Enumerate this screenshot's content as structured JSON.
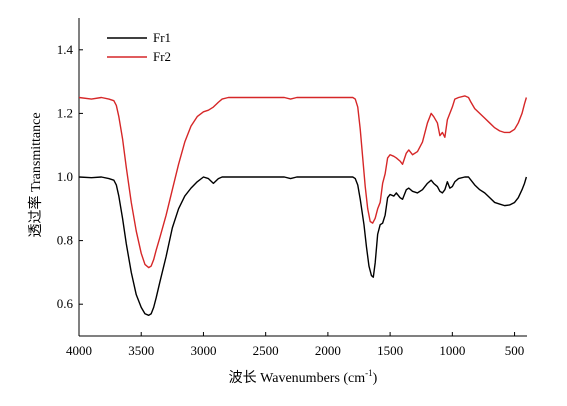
{
  "chart_data": {
    "type": "line",
    "title": "",
    "xlabel": "波长 Wavenumbers (cm",
    "xlabel_unit_sup": "-1",
    "xlabel_close": ")",
    "ylabel": "透过率 Transmittance",
    "xlim": [
      4000,
      400
    ],
    "ylim": [
      0.5,
      1.5
    ],
    "x_reversed": true,
    "x_ticks": [
      4000,
      3500,
      3000,
      2500,
      2000,
      1500,
      1000,
      500
    ],
    "x_tick_labels": [
      "4000",
      "3500",
      "3000",
      "2500",
      "2000",
      "1500",
      "1000",
      "500"
    ],
    "y_ticks": [
      0.6,
      0.8,
      1.0,
      1.2,
      1.4
    ],
    "y_tick_labels": [
      "0.6",
      "0.8",
      "1.0",
      "1.2",
      "1.4"
    ],
    "grid": false,
    "legend_position": "top-left",
    "series": [
      {
        "name": "Fr1",
        "color": "#000000",
        "points": [
          [
            4000,
            1.0
          ],
          [
            3900,
            0.998
          ],
          [
            3820,
            1.0
          ],
          [
            3760,
            0.995
          ],
          [
            3720,
            0.99
          ],
          [
            3700,
            0.975
          ],
          [
            3680,
            0.94
          ],
          [
            3650,
            0.87
          ],
          [
            3620,
            0.79
          ],
          [
            3580,
            0.7
          ],
          [
            3540,
            0.63
          ],
          [
            3500,
            0.59
          ],
          [
            3470,
            0.57
          ],
          [
            3440,
            0.565
          ],
          [
            3420,
            0.57
          ],
          [
            3400,
            0.59
          ],
          [
            3380,
            0.62
          ],
          [
            3350,
            0.67
          ],
          [
            3300,
            0.75
          ],
          [
            3250,
            0.84
          ],
          [
            3200,
            0.9
          ],
          [
            3150,
            0.94
          ],
          [
            3100,
            0.965
          ],
          [
            3050,
            0.985
          ],
          [
            3000,
            1.0
          ],
          [
            2960,
            0.995
          ],
          [
            2920,
            0.98
          ],
          [
            2880,
            0.995
          ],
          [
            2850,
            1.0
          ],
          [
            2800,
            1.0
          ],
          [
            2500,
            1.0
          ],
          [
            2350,
            1.0
          ],
          [
            2300,
            0.995
          ],
          [
            2250,
            1.0
          ],
          [
            2000,
            1.0
          ],
          [
            1800,
            1.0
          ],
          [
            1780,
            0.995
          ],
          [
            1760,
            0.975
          ],
          [
            1740,
            0.93
          ],
          [
            1710,
            0.85
          ],
          [
            1690,
            0.78
          ],
          [
            1670,
            0.72
          ],
          [
            1650,
            0.69
          ],
          [
            1635,
            0.685
          ],
          [
            1620,
            0.73
          ],
          [
            1600,
            0.82
          ],
          [
            1580,
            0.85
          ],
          [
            1560,
            0.855
          ],
          [
            1540,
            0.88
          ],
          [
            1520,
            0.935
          ],
          [
            1500,
            0.945
          ],
          [
            1470,
            0.94
          ],
          [
            1450,
            0.95
          ],
          [
            1420,
            0.935
          ],
          [
            1400,
            0.93
          ],
          [
            1370,
            0.96
          ],
          [
            1350,
            0.965
          ],
          [
            1320,
            0.955
          ],
          [
            1280,
            0.95
          ],
          [
            1240,
            0.96
          ],
          [
            1200,
            0.98
          ],
          [
            1170,
            0.99
          ],
          [
            1150,
            0.98
          ],
          [
            1120,
            0.97
          ],
          [
            1100,
            0.955
          ],
          [
            1080,
            0.95
          ],
          [
            1060,
            0.96
          ],
          [
            1040,
            0.985
          ],
          [
            1020,
            0.965
          ],
          [
            1000,
            0.97
          ],
          [
            980,
            0.985
          ],
          [
            950,
            0.995
          ],
          [
            900,
            1.0
          ],
          [
            870,
            1.0
          ],
          [
            850,
            0.99
          ],
          [
            820,
            0.975
          ],
          [
            780,
            0.96
          ],
          [
            740,
            0.95
          ],
          [
            700,
            0.935
          ],
          [
            660,
            0.92
          ],
          [
            620,
            0.915
          ],
          [
            580,
            0.91
          ],
          [
            540,
            0.912
          ],
          [
            500,
            0.92
          ],
          [
            470,
            0.935
          ],
          [
            440,
            0.96
          ],
          [
            420,
            0.98
          ],
          [
            405,
            1.0
          ]
        ]
      },
      {
        "name": "Fr2",
        "color": "#d62728",
        "points": [
          [
            4000,
            1.25
          ],
          [
            3900,
            1.245
          ],
          [
            3820,
            1.25
          ],
          [
            3760,
            1.245
          ],
          [
            3720,
            1.24
          ],
          [
            3700,
            1.225
          ],
          [
            3680,
            1.19
          ],
          [
            3650,
            1.12
          ],
          [
            3620,
            1.03
          ],
          [
            3580,
            0.92
          ],
          [
            3540,
            0.83
          ],
          [
            3500,
            0.76
          ],
          [
            3470,
            0.725
          ],
          [
            3440,
            0.715
          ],
          [
            3420,
            0.72
          ],
          [
            3400,
            0.74
          ],
          [
            3380,
            0.77
          ],
          [
            3350,
            0.81
          ],
          [
            3300,
            0.88
          ],
          [
            3250,
            0.96
          ],
          [
            3200,
            1.04
          ],
          [
            3150,
            1.11
          ],
          [
            3100,
            1.16
          ],
          [
            3050,
            1.19
          ],
          [
            3000,
            1.205
          ],
          [
            2960,
            1.21
          ],
          [
            2920,
            1.22
          ],
          [
            2880,
            1.235
          ],
          [
            2850,
            1.245
          ],
          [
            2800,
            1.25
          ],
          [
            2500,
            1.25
          ],
          [
            2350,
            1.25
          ],
          [
            2300,
            1.245
          ],
          [
            2250,
            1.25
          ],
          [
            2000,
            1.25
          ],
          [
            1800,
            1.25
          ],
          [
            1780,
            1.245
          ],
          [
            1760,
            1.22
          ],
          [
            1740,
            1.15
          ],
          [
            1720,
            1.06
          ],
          [
            1700,
            0.97
          ],
          [
            1680,
            0.9
          ],
          [
            1660,
            0.86
          ],
          [
            1640,
            0.855
          ],
          [
            1620,
            0.87
          ],
          [
            1600,
            0.9
          ],
          [
            1580,
            0.92
          ],
          [
            1560,
            0.98
          ],
          [
            1540,
            1.01
          ],
          [
            1520,
            1.06
          ],
          [
            1500,
            1.07
          ],
          [
            1470,
            1.065
          ],
          [
            1450,
            1.06
          ],
          [
            1420,
            1.05
          ],
          [
            1400,
            1.04
          ],
          [
            1370,
            1.075
          ],
          [
            1350,
            1.085
          ],
          [
            1320,
            1.07
          ],
          [
            1280,
            1.08
          ],
          [
            1240,
            1.11
          ],
          [
            1200,
            1.17
          ],
          [
            1170,
            1.2
          ],
          [
            1150,
            1.19
          ],
          [
            1120,
            1.17
          ],
          [
            1100,
            1.13
          ],
          [
            1080,
            1.14
          ],
          [
            1060,
            1.125
          ],
          [
            1040,
            1.18
          ],
          [
            1020,
            1.2
          ],
          [
            1000,
            1.22
          ],
          [
            980,
            1.245
          ],
          [
            950,
            1.25
          ],
          [
            900,
            1.255
          ],
          [
            870,
            1.25
          ],
          [
            850,
            1.235
          ],
          [
            820,
            1.215
          ],
          [
            780,
            1.2
          ],
          [
            740,
            1.185
          ],
          [
            700,
            1.17
          ],
          [
            660,
            1.155
          ],
          [
            620,
            1.145
          ],
          [
            580,
            1.14
          ],
          [
            540,
            1.14
          ],
          [
            500,
            1.15
          ],
          [
            470,
            1.17
          ],
          [
            440,
            1.2
          ],
          [
            420,
            1.23
          ],
          [
            405,
            1.25
          ]
        ]
      }
    ]
  }
}
